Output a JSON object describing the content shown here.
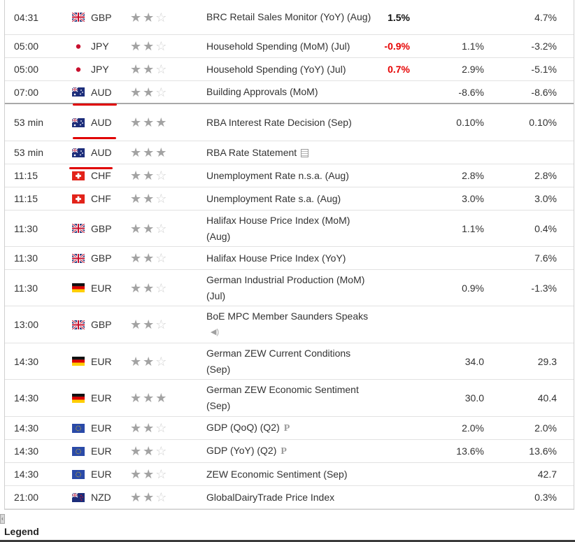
{
  "rows": [
    {
      "time": "04:31",
      "currency": "GBP",
      "flag": "GB",
      "stars": 2,
      "event": "BRC Retail Sales Monitor (YoY) (Aug)",
      "actual": "1.5%",
      "actual_color": "black",
      "forecast": "",
      "previous": "4.7%",
      "icon": "",
      "height": 50
    },
    {
      "time": "05:00",
      "currency": "JPY",
      "flag": "JP",
      "stars": 2,
      "event": "Household Spending (MoM) (Jul)",
      "actual": "-0.9%",
      "actual_color": "red",
      "forecast": "1.1%",
      "previous": "-3.2%",
      "icon": "",
      "height": 33
    },
    {
      "time": "05:00",
      "currency": "JPY",
      "flag": "JP",
      "stars": 2,
      "event": "Household Spending (YoY) (Jul)",
      "actual": "0.7%",
      "actual_color": "red",
      "forecast": "2.9%",
      "previous": "-5.1%",
      "icon": "",
      "height": 33
    },
    {
      "time": "07:00",
      "currency": "AUD",
      "flag": "AU",
      "stars": 2,
      "event": "Building Approvals (MoM)",
      "actual": "",
      "actual_color": "black",
      "forecast": "-8.6%",
      "previous": "-8.6%",
      "icon": "",
      "height": 33,
      "now_line": true
    },
    {
      "time": "53 min",
      "currency": "AUD",
      "flag": "AU",
      "stars": 3,
      "event": "RBA Interest Rate Decision (Sep)",
      "actual": "",
      "actual_color": "black",
      "forecast": "0.10%",
      "previous": "0.10%",
      "icon": "",
      "height": 53
    },
    {
      "time": "53 min",
      "currency": "AUD",
      "flag": "AU",
      "stars": 3,
      "event": "RBA Rate Statement",
      "actual": "",
      "actual_color": "black",
      "forecast": "",
      "previous": "",
      "icon": "doc-icon",
      "height": 33
    },
    {
      "time": "11:15",
      "currency": "CHF",
      "flag": "CH",
      "stars": 2,
      "event": "Unemployment Rate n.s.a. (Aug)",
      "actual": "",
      "actual_color": "black",
      "forecast": "2.8%",
      "previous": "2.8%",
      "icon": "",
      "height": 33
    },
    {
      "time": "11:15",
      "currency": "CHF",
      "flag": "CH",
      "stars": 2,
      "event": "Unemployment Rate s.a. (Aug)",
      "actual": "",
      "actual_color": "black",
      "forecast": "3.0%",
      "previous": "3.0%",
      "icon": "",
      "height": 33
    },
    {
      "time": "11:30",
      "currency": "GBP",
      "flag": "GB",
      "stars": 2,
      "event": "Halifax House Price Index (MoM) (Aug)",
      "actual": "",
      "actual_color": "black",
      "forecast": "1.1%",
      "previous": "0.4%",
      "icon": "",
      "height": 52
    },
    {
      "time": "11:30",
      "currency": "GBP",
      "flag": "GB",
      "stars": 2,
      "event": "Halifax House Price Index (YoY)",
      "actual": "",
      "actual_color": "black",
      "forecast": "",
      "previous": "7.6%",
      "icon": "",
      "height": 33
    },
    {
      "time": "11:30",
      "currency": "EUR",
      "flag": "DE",
      "stars": 2,
      "event": "German Industrial Production (MoM) (Jul)",
      "actual": "",
      "actual_color": "black",
      "forecast": "0.9%",
      "previous": "-1.3%",
      "icon": "",
      "height": 52
    },
    {
      "time": "13:00",
      "currency": "GBP",
      "flag": "GB",
      "stars": 2,
      "event": "BoE MPC Member Saunders Speaks",
      "actual": "",
      "actual_color": "black",
      "forecast": "",
      "previous": "",
      "icon": "speaker-icon",
      "height": 53
    },
    {
      "time": "14:30",
      "currency": "EUR",
      "flag": "DE",
      "stars": 2,
      "event": "German ZEW Current Conditions (Sep)",
      "actual": "",
      "actual_color": "black",
      "forecast": "34.0",
      "previous": "29.3",
      "icon": "",
      "height": 52
    },
    {
      "time": "14:30",
      "currency": "EUR",
      "flag": "DE",
      "stars": 3,
      "event": "German ZEW Economic Sentiment (Sep)",
      "actual": "",
      "actual_color": "black",
      "forecast": "30.0",
      "previous": "40.4",
      "icon": "",
      "height": 53
    },
    {
      "time": "14:30",
      "currency": "EUR",
      "flag": "EU",
      "stars": 2,
      "event": "GDP (QoQ) (Q2)",
      "actual": "",
      "actual_color": "black",
      "forecast": "2.0%",
      "previous": "2.0%",
      "icon": "preliminary-icon",
      "height": 33
    },
    {
      "time": "14:30",
      "currency": "EUR",
      "flag": "EU",
      "stars": 2,
      "event": "GDP (YoY) (Q2)",
      "actual": "",
      "actual_color": "black",
      "forecast": "13.6%",
      "previous": "13.6%",
      "icon": "preliminary-icon",
      "height": 33
    },
    {
      "time": "14:30",
      "currency": "EUR",
      "flag": "EU",
      "stars": 2,
      "event": "ZEW Economic Sentiment (Sep)",
      "actual": "",
      "actual_color": "black",
      "forecast": "",
      "previous": "42.7",
      "icon": "",
      "height": 33
    },
    {
      "time": "21:00",
      "currency": "NZD",
      "flag": "NZ",
      "stars": 2,
      "event": "GlobalDairyTrade Price Index",
      "actual": "",
      "actual_color": "black",
      "forecast": "",
      "previous": "0.3%",
      "icon": "",
      "height": 33
    }
  ],
  "icon_glyphs": {
    "preliminary-icon": "P",
    "speaker-icon": "◀)"
  },
  "highlight_color": "#e00000",
  "scroll_arrow": "‹",
  "legend_label": "Legend"
}
